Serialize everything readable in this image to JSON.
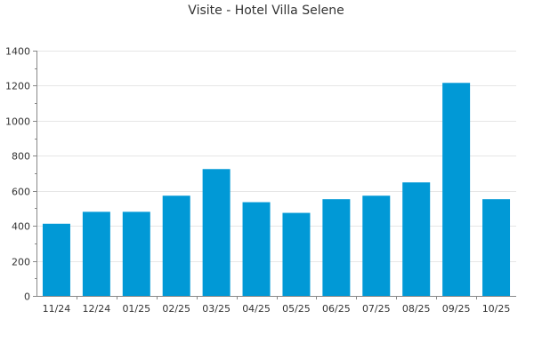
{
  "chart_data": {
    "type": "bar",
    "title": "Visite - Hotel Villa Selene",
    "xlabel": "",
    "ylabel": "",
    "categories": [
      "11/24",
      "12/24",
      "01/25",
      "02/25",
      "03/25",
      "04/25",
      "05/25",
      "06/25",
      "07/25",
      "08/25",
      "09/25",
      "10/25"
    ],
    "values": [
      412,
      480,
      480,
      572,
      724,
      535,
      474,
      552,
      572,
      648,
      1216,
      552
    ],
    "ylim": [
      0,
      1400
    ],
    "yticks": [
      0,
      200,
      400,
      600,
      800,
      1000,
      1200,
      1400
    ],
    "bar_color": "#0199d6",
    "grid": true,
    "legend": "none"
  }
}
